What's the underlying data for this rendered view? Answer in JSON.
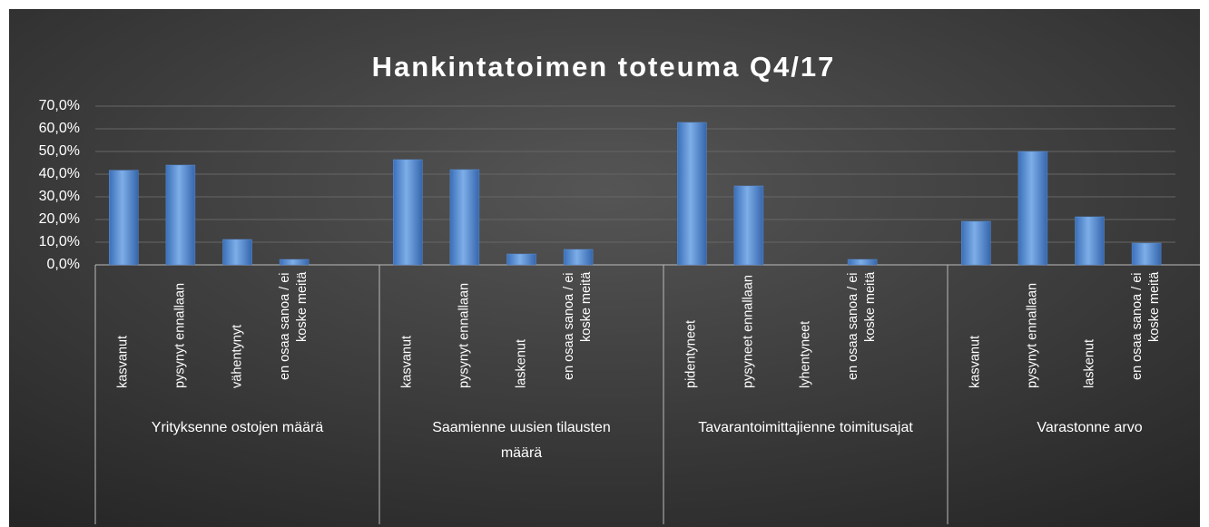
{
  "chart_data": {
    "type": "bar",
    "title": "Hankintatoimen toteuma Q4/17",
    "color": "#5b8fd6",
    "ylim": [
      0,
      70
    ],
    "yticks": [
      {
        "value": 0,
        "label": "0,0%"
      },
      {
        "value": 10,
        "label": "10,0%"
      },
      {
        "value": 20,
        "label": "20,0%"
      },
      {
        "value": 30,
        "label": "30,0%"
      },
      {
        "value": 40,
        "label": "40,0%"
      },
      {
        "value": 50,
        "label": "50,0%"
      },
      {
        "value": 60,
        "label": "60,0%"
      },
      {
        "value": 70,
        "label": "70,0%"
      }
    ],
    "grid": true,
    "groups": [
      {
        "name": "Yrityksenne ostojen määrä",
        "categories": [
          "kasvanut",
          "pysynyt ennallaan",
          "vähentynyt",
          "en osaa sanoa / ei koske meitä"
        ],
        "values": [
          41.7,
          44,
          11.2,
          2.4
        ]
      },
      {
        "name": "Saamienne uusien tilausten määrä",
        "categories": [
          "kasvanut",
          "pysynyt ennallaan",
          "laskenut",
          "en osaa sanoa / ei koske meitä"
        ],
        "values": [
          46.4,
          42,
          4.8,
          6.8
        ]
      },
      {
        "name": "Tavarantoimittajienne toimitusajat",
        "categories": [
          "pidentyneet",
          "pysyneet ennallaan",
          "lyhentyneet",
          "en osaa sanoa / ei koske meitä"
        ],
        "values": [
          62.8,
          34.8,
          0,
          2.4
        ]
      },
      {
        "name": "Varastonne arvo",
        "categories": [
          "kasvanut",
          "pysynyt ennallaan",
          "laskenut",
          "en osaa sanoa / ei koske meitä"
        ],
        "values": [
          19.2,
          50,
          21.2,
          9.6
        ]
      }
    ]
  }
}
